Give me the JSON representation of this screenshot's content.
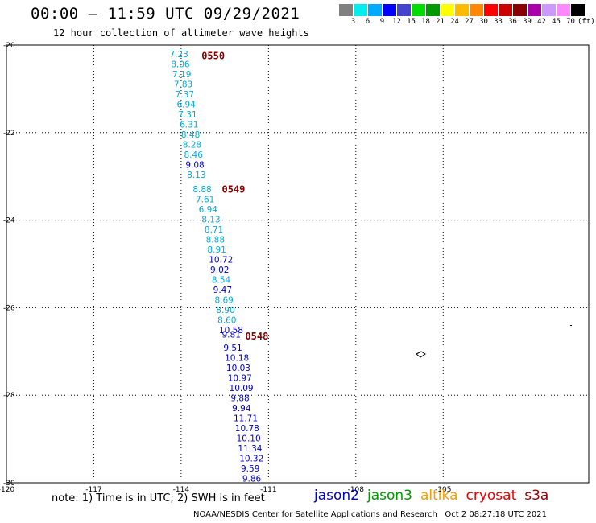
{
  "header": {
    "title": "00:00 – 11:59 UTC 09/29/2021",
    "subtitle": "12 hour collection of altimeter wave heights"
  },
  "color_scale": {
    "colors": [
      "#808080",
      "#00eeee",
      "#00aaff",
      "#0000ff",
      "#4444cc",
      "#00dd00",
      "#009900",
      "#ffff00",
      "#ffbb00",
      "#ff8800",
      "#ff0000",
      "#cc0000",
      "#880000",
      "#aa00aa",
      "#cc99ff",
      "#ff88ff",
      "#000000"
    ],
    "labels": [
      "3",
      "6",
      "9",
      "12",
      "15",
      "18",
      "21",
      "24",
      "27",
      "30",
      "33",
      "36",
      "39",
      "42",
      "45",
      "70"
    ],
    "unit": "(ft)"
  },
  "footer": {
    "note": "note: 1) Time is in UTC; 2) SWH is in feet",
    "satellites": [
      {
        "name": "jason2",
        "color": "#0000cc"
      },
      {
        "name": "jason3",
        "color": "#009900"
      },
      {
        "name": "altika",
        "color": "#ff9900"
      },
      {
        "name": "cryosat",
        "color": "#ee0000"
      },
      {
        "name": "s3a",
        "color": "#990000"
      }
    ],
    "credit": "NOAA/NESDIS Center for Satellite Applications and Research",
    "timestamp": "Oct  2 08:27:18 UTC 2021"
  },
  "chart_data": {
    "type": "scatter",
    "title": "00:00 – 11:59 UTC 09/29/2021",
    "xlim": [
      -120,
      -100
    ],
    "ylim": [
      -30,
      -20
    ],
    "x_ticks": [
      "-120",
      "-117",
      "-114",
      "-111",
      "-108",
      "-105"
    ],
    "y_ticks": [
      "-20",
      "-22",
      "-24",
      "-26",
      "-28",
      "-30"
    ],
    "grid": true,
    "swh_colors": {
      "light": "#00aadd",
      "dark": "#0000cc"
    },
    "time_labels": [
      {
        "text": "0550",
        "lon": -113.3,
        "lat": -20.25
      },
      {
        "text": "0549",
        "lon": -112.6,
        "lat": -23.3
      },
      {
        "text": "0548",
        "lon": -111.8,
        "lat": -26.65
      }
    ],
    "points": [
      {
        "lat": -20.2,
        "lon": -114.4,
        "swh": "7.23",
        "band": "light"
      },
      {
        "lat": -20.43,
        "lon": -114.35,
        "swh": "8.06",
        "band": "light"
      },
      {
        "lat": -20.66,
        "lon": -114.3,
        "swh": "7.19",
        "band": "light"
      },
      {
        "lat": -20.89,
        "lon": -114.25,
        "swh": "7.83",
        "band": "light"
      },
      {
        "lat": -21.12,
        "lon": -114.2,
        "swh": "7.37",
        "band": "light"
      },
      {
        "lat": -21.35,
        "lon": -114.15,
        "swh": "6.94",
        "band": "light"
      },
      {
        "lat": -21.58,
        "lon": -114.1,
        "swh": "7.31",
        "band": "light"
      },
      {
        "lat": -21.81,
        "lon": -114.05,
        "swh": "6.31",
        "band": "light"
      },
      {
        "lat": -22.04,
        "lon": -114.0,
        "swh": "8.48",
        "band": "light"
      },
      {
        "lat": -22.27,
        "lon": -113.95,
        "swh": "8.28",
        "band": "light"
      },
      {
        "lat": -22.5,
        "lon": -113.9,
        "swh": "8.46",
        "band": "light"
      },
      {
        "lat": -22.73,
        "lon": -113.85,
        "swh": "9.08",
        "band": "dark"
      },
      {
        "lat": -22.96,
        "lon": -113.8,
        "swh": "8.13",
        "band": "light"
      },
      {
        "lat": -23.29,
        "lon": -113.6,
        "swh": "8.88",
        "band": "light"
      },
      {
        "lat": -23.52,
        "lon": -113.5,
        "swh": "7.61",
        "band": "light"
      },
      {
        "lat": -23.75,
        "lon": -113.4,
        "swh": "6.94",
        "band": "light"
      },
      {
        "lat": -23.98,
        "lon": -113.3,
        "swh": "8.13",
        "band": "light"
      },
      {
        "lat": -24.21,
        "lon": -113.2,
        "swh": "8.71",
        "band": "light"
      },
      {
        "lat": -24.44,
        "lon": -113.15,
        "swh": "8.88",
        "band": "light"
      },
      {
        "lat": -24.67,
        "lon": -113.1,
        "swh": "8.91",
        "band": "light"
      },
      {
        "lat": -24.9,
        "lon": -113.05,
        "swh": "10.72",
        "band": "dark"
      },
      {
        "lat": -25.13,
        "lon": -113.0,
        "swh": "9.02",
        "band": "dark"
      },
      {
        "lat": -25.36,
        "lon": -112.95,
        "swh": "8.54",
        "band": "light"
      },
      {
        "lat": -25.59,
        "lon": -112.9,
        "swh": "9.47",
        "band": "dark"
      },
      {
        "lat": -25.82,
        "lon": -112.85,
        "swh": "8.69",
        "band": "light"
      },
      {
        "lat": -26.05,
        "lon": -112.8,
        "swh": "8.90",
        "band": "light"
      },
      {
        "lat": -26.28,
        "lon": -112.75,
        "swh": "8.60",
        "band": "light"
      },
      {
        "lat": -26.51,
        "lon": -112.7,
        "swh": "10.58",
        "band": "dark"
      },
      {
        "lat": -26.61,
        "lon": -112.6,
        "swh": "9.81",
        "band": "dark"
      },
      {
        "lat": -26.91,
        "lon": -112.55,
        "swh": "9.51",
        "band": "dark"
      },
      {
        "lat": -27.14,
        "lon": -112.5,
        "swh": "10.18",
        "band": "dark"
      },
      {
        "lat": -27.37,
        "lon": -112.45,
        "swh": "10.03",
        "band": "dark"
      },
      {
        "lat": -27.6,
        "lon": -112.4,
        "swh": "10.97",
        "band": "dark"
      },
      {
        "lat": -27.83,
        "lon": -112.35,
        "swh": "10.09",
        "band": "dark"
      },
      {
        "lat": -28.06,
        "lon": -112.3,
        "swh": "9.88",
        "band": "dark"
      },
      {
        "lat": -28.29,
        "lon": -112.25,
        "swh": "9.94",
        "band": "dark"
      },
      {
        "lat": -28.52,
        "lon": -112.2,
        "swh": "11.71",
        "band": "dark"
      },
      {
        "lat": -28.75,
        "lon": -112.15,
        "swh": "10.78",
        "band": "dark"
      },
      {
        "lat": -28.98,
        "lon": -112.1,
        "swh": "10.10",
        "band": "dark"
      },
      {
        "lat": -29.21,
        "lon": -112.05,
        "swh": "11.34",
        "band": "dark"
      },
      {
        "lat": -29.44,
        "lon": -112.0,
        "swh": "10.32",
        "band": "dark"
      },
      {
        "lat": -29.67,
        "lon": -111.95,
        "swh": "9.59",
        "band": "dark"
      },
      {
        "lat": -29.9,
        "lon": -111.9,
        "swh": "9.86",
        "band": "dark"
      }
    ]
  }
}
